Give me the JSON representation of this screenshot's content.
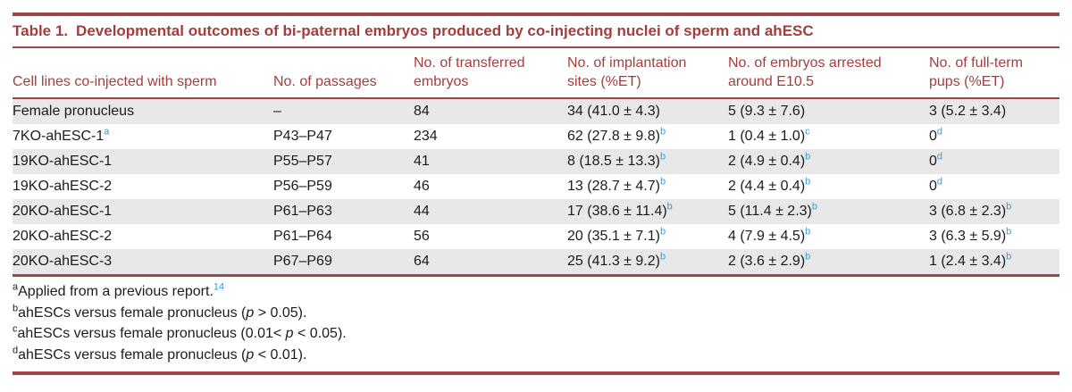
{
  "colors": {
    "accent_text": "#A33E3E",
    "rule_line": "#9F4747",
    "superscript_blue": "#339FD9",
    "row_stripe": "#E8E8E8",
    "body_text": "#1C1C1C"
  },
  "table": {
    "title_prefix": "Table 1.",
    "title_text": "Developmental outcomes of bi-paternal embryos produced by co-injecting nuclei of sperm and ahESC",
    "columns": [
      "Cell lines co-injected with sperm",
      "No. of passages",
      "No. of transferred embryos",
      "No. of implantation sites (%ET)",
      "No. of embryos arrested around E10.5",
      "No. of full-term pups (%ET)"
    ],
    "rows": [
      {
        "cells": [
          {
            "text": "Female pronucleus"
          },
          {
            "text": "–"
          },
          {
            "text": "84"
          },
          {
            "text": "34 (41.0 ± 4.3)"
          },
          {
            "text": "5 (9.3 ± 7.6)"
          },
          {
            "text": "3 (5.2 ± 3.4)"
          }
        ]
      },
      {
        "cells": [
          {
            "text": "7KO-ahESC-1",
            "sup": "a"
          },
          {
            "text": "P43–P47"
          },
          {
            "text": "234"
          },
          {
            "text": "62 (27.8 ± 9.8)",
            "sup": "b"
          },
          {
            "text": "1 (0.4 ± 1.0)",
            "sup": "c"
          },
          {
            "text": "0",
            "sup": "d"
          }
        ]
      },
      {
        "cells": [
          {
            "text": "19KO-ahESC-1"
          },
          {
            "text": "P55–P57"
          },
          {
            "text": "41"
          },
          {
            "text": "8 (18.5 ± 13.3)",
            "sup": "b"
          },
          {
            "text": "2 (4.9 ± 0.4)",
            "sup": "b"
          },
          {
            "text": "0",
            "sup": "d"
          }
        ]
      },
      {
        "cells": [
          {
            "text": "19KO-ahESC-2"
          },
          {
            "text": "P56–P59"
          },
          {
            "text": "46"
          },
          {
            "text": "13 (28.7 ± 4.7)",
            "sup": "b"
          },
          {
            "text": "2 (4.4 ± 0.4)",
            "sup": "b"
          },
          {
            "text": "0",
            "sup": "d"
          }
        ]
      },
      {
        "cells": [
          {
            "text": "20KO-ahESC-1"
          },
          {
            "text": "P61–P63"
          },
          {
            "text": "44"
          },
          {
            "text": "17 (38.6 ± 11.4)",
            "sup": "b"
          },
          {
            "text": "5 (11.4 ± 2.3)",
            "sup": "b"
          },
          {
            "text": "3 (6.8 ± 2.3)",
            "sup": "b"
          }
        ]
      },
      {
        "cells": [
          {
            "text": "20KO-ahESC-2"
          },
          {
            "text": "P61–P64"
          },
          {
            "text": "56"
          },
          {
            "text": "20 (35.1 ± 7.1)",
            "sup": "b"
          },
          {
            "text": "4 (7.9 ± 4.5)",
            "sup": "b"
          },
          {
            "text": "3 (6.3 ± 5.9)",
            "sup": "b"
          }
        ]
      },
      {
        "cells": [
          {
            "text": "20KO-ahESC-3"
          },
          {
            "text": "P67–P69"
          },
          {
            "text": "64"
          },
          {
            "text": "25 (41.3 ± 9.2)",
            "sup": "b"
          },
          {
            "text": "2 (3.6 ± 2.9)",
            "sup": "b"
          },
          {
            "text": "1 (2.4 ± 3.4)",
            "sup": "b"
          }
        ]
      }
    ],
    "footnotes": [
      {
        "marker": "a",
        "parts": [
          {
            "t": "Applied from a previous report."
          },
          {
            "t": "14",
            "style": "sup-blue"
          }
        ]
      },
      {
        "marker": "b",
        "parts": [
          {
            "t": "ahESCs versus female pronucleus ("
          },
          {
            "t": "p",
            "style": "italic"
          },
          {
            "t": " > 0.05)."
          }
        ]
      },
      {
        "marker": "c",
        "parts": [
          {
            "t": "ahESCs versus female pronucleus (0.01< "
          },
          {
            "t": "p",
            "style": "italic"
          },
          {
            "t": " < 0.05)."
          }
        ]
      },
      {
        "marker": "d",
        "parts": [
          {
            "t": "ahESCs versus female pronucleus ("
          },
          {
            "t": "p",
            "style": "italic"
          },
          {
            "t": " < 0.01)."
          }
        ]
      }
    ]
  }
}
